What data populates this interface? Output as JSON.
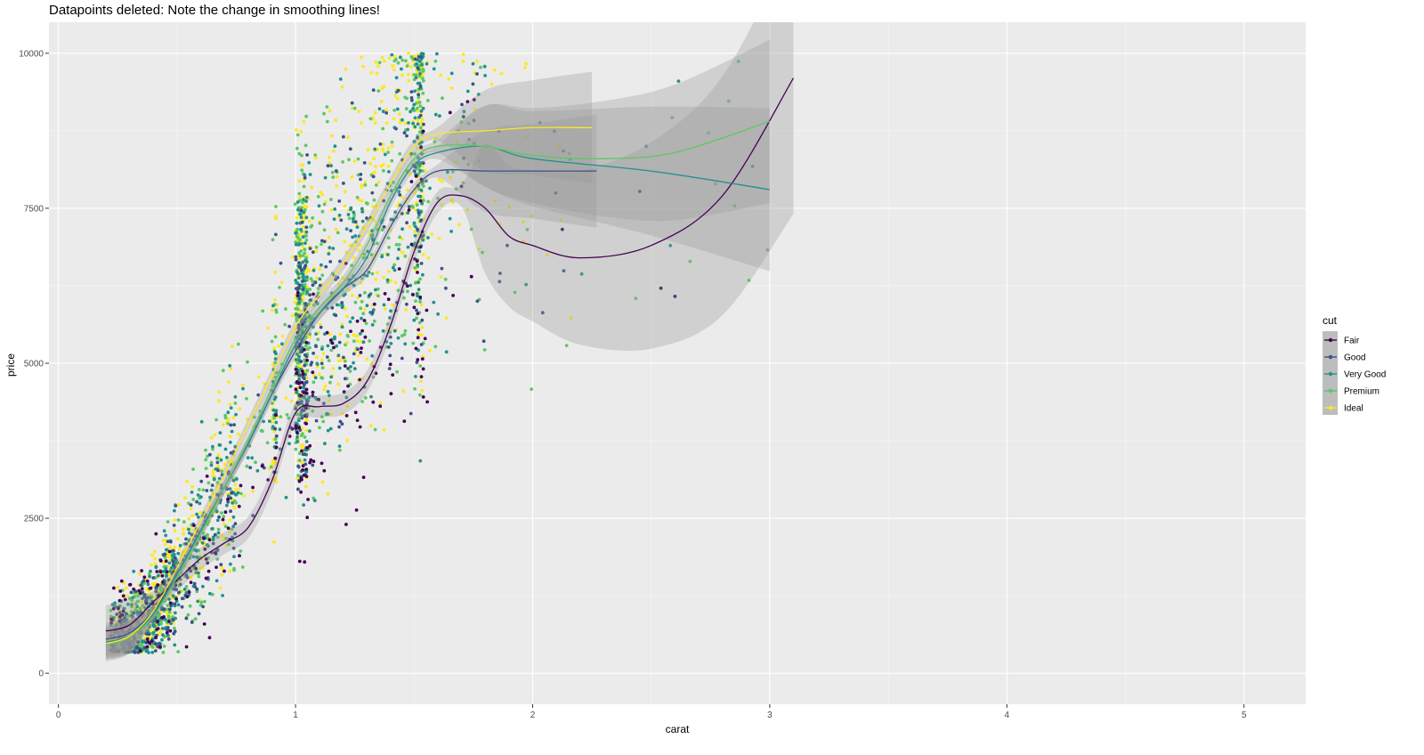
{
  "chart_data": {
    "type": "scatter",
    "title": "Datapoints deleted: Note the change in smoothing lines!",
    "xlabel": "carat",
    "ylabel": "price",
    "xlim": [
      -0.04,
      5.26
    ],
    "ylim": [
      -500,
      10500
    ],
    "x_ticks": [
      0,
      1,
      2,
      3,
      4,
      5
    ],
    "y_ticks": [
      0,
      2500,
      5000,
      7500,
      10000
    ],
    "x_tick_labels": [
      "0",
      "1",
      "2",
      "3",
      "4",
      "5"
    ],
    "y_tick_labels": [
      "0",
      "2500",
      "5000",
      "7500",
      "10000"
    ],
    "grid": true,
    "panel_background": "#ebebeb",
    "legend": {
      "title": "cut",
      "position": "right"
    },
    "series": [
      {
        "name": "Fair",
        "color": "#440154",
        "smooth": [
          [
            0.2,
            680
          ],
          [
            0.3,
            780
          ],
          [
            0.4,
            1150
          ],
          [
            0.5,
            1500
          ],
          [
            0.6,
            1850
          ],
          [
            0.7,
            2100
          ],
          [
            0.8,
            2350
          ],
          [
            0.9,
            3100
          ],
          [
            1.0,
            4200
          ],
          [
            1.1,
            4300
          ],
          [
            1.2,
            4350
          ],
          [
            1.3,
            4700
          ],
          [
            1.4,
            5600
          ],
          [
            1.5,
            6800
          ],
          [
            1.6,
            7600
          ],
          [
            1.7,
            7700
          ],
          [
            1.8,
            7500
          ],
          [
            1.9,
            7050
          ],
          [
            2.0,
            6900
          ],
          [
            2.2,
            6700
          ],
          [
            2.5,
            6900
          ],
          [
            2.8,
            7700
          ],
          [
            3.1,
            9600
          ]
        ]
      },
      {
        "name": "Good",
        "color": "#3b528b",
        "smooth": [
          [
            0.2,
            550
          ],
          [
            0.3,
            650
          ],
          [
            0.4,
            1000
          ],
          [
            0.5,
            1600
          ],
          [
            0.6,
            2300
          ],
          [
            0.7,
            3000
          ],
          [
            0.8,
            3700
          ],
          [
            0.9,
            4500
          ],
          [
            1.0,
            5200
          ],
          [
            1.1,
            5800
          ],
          [
            1.2,
            6200
          ],
          [
            1.3,
            6500
          ],
          [
            1.4,
            7200
          ],
          [
            1.5,
            7800
          ],
          [
            1.6,
            8100
          ],
          [
            1.8,
            8100
          ],
          [
            2.0,
            8100
          ],
          [
            2.27,
            8100
          ]
        ]
      },
      {
        "name": "Very Good",
        "color": "#21908c",
        "smooth": [
          [
            0.2,
            500
          ],
          [
            0.3,
            600
          ],
          [
            0.4,
            950
          ],
          [
            0.5,
            1600
          ],
          [
            0.6,
            2300
          ],
          [
            0.7,
            3000
          ],
          [
            0.8,
            3700
          ],
          [
            0.9,
            4500
          ],
          [
            1.0,
            5300
          ],
          [
            1.1,
            5800
          ],
          [
            1.2,
            6200
          ],
          [
            1.3,
            6700
          ],
          [
            1.4,
            7600
          ],
          [
            1.5,
            8200
          ],
          [
            1.6,
            8400
          ],
          [
            1.8,
            8500
          ],
          [
            2.0,
            8300
          ],
          [
            2.5,
            8100
          ],
          [
            3.0,
            7800
          ]
        ]
      },
      {
        "name": "Premium",
        "color": "#5dc863",
        "smooth": [
          [
            0.2,
            450
          ],
          [
            0.3,
            580
          ],
          [
            0.4,
            920
          ],
          [
            0.5,
            1550
          ],
          [
            0.6,
            2250
          ],
          [
            0.7,
            3000
          ],
          [
            0.8,
            3750
          ],
          [
            0.9,
            4600
          ],
          [
            1.0,
            5400
          ],
          [
            1.1,
            5900
          ],
          [
            1.2,
            6300
          ],
          [
            1.3,
            6900
          ],
          [
            1.4,
            7700
          ],
          [
            1.5,
            8300
          ],
          [
            1.6,
            8500
          ],
          [
            1.8,
            8500
          ],
          [
            2.0,
            8350
          ],
          [
            2.3,
            8300
          ],
          [
            2.6,
            8400
          ],
          [
            3.0,
            8900
          ]
        ]
      },
      {
        "name": "Ideal",
        "color": "#fde725",
        "smooth": [
          [
            0.2,
            480
          ],
          [
            0.3,
            600
          ],
          [
            0.4,
            1000
          ],
          [
            0.5,
            1700
          ],
          [
            0.6,
            2450
          ],
          [
            0.7,
            3200
          ],
          [
            0.8,
            4000
          ],
          [
            0.9,
            4800
          ],
          [
            1.0,
            5600
          ],
          [
            1.1,
            6100
          ],
          [
            1.2,
            6600
          ],
          [
            1.3,
            7200
          ],
          [
            1.4,
            7900
          ],
          [
            1.5,
            8500
          ],
          [
            1.6,
            8700
          ],
          [
            1.8,
            8750
          ],
          [
            2.0,
            8800
          ],
          [
            2.25,
            8800
          ]
        ]
      }
    ]
  }
}
